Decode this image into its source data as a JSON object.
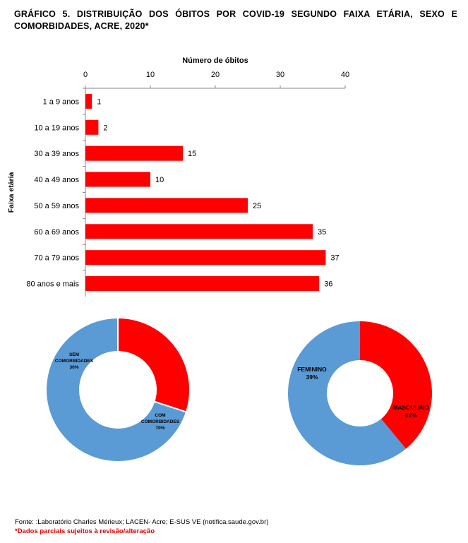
{
  "title": "GRÁFICO 5. DISTRIBUIÇÃO DOS ÓBITOS POR COVID-19 SEGUNDO FAIXA ETÁRIA, SEXO E COMORBIDADES, ACRE, 2020*",
  "chart_data": [
    {
      "type": "bar",
      "orientation": "horizontal",
      "title": "",
      "xlabel": "Número de óbitos",
      "ylabel": "Faixa etária",
      "xlim": [
        0,
        40
      ],
      "xticks": [
        0,
        10,
        20,
        30,
        40
      ],
      "x_axis_position": "top",
      "grid": false,
      "categories": [
        "1 a 9 anos",
        "10 a 19 anos",
        "30 a 39 anos",
        "40 a 49 anos",
        "50 a 59 anos",
        "60 a 69 anos",
        "70 a 79 anos",
        "80 anos e mais"
      ],
      "values": [
        1,
        2,
        15,
        10,
        25,
        35,
        37,
        36
      ],
      "value_labels": [
        "1",
        "2",
        "15",
        "10",
        "25",
        "35",
        "37",
        "36"
      ],
      "color": "#ff0000"
    },
    {
      "type": "pie",
      "style": "donut",
      "slices": [
        {
          "label": "SEM COMORBIDADES",
          "label_lines": [
            "SEM",
            "COMORBIDADES"
          ],
          "value": 30,
          "pct_label": "30%",
          "color": "#ff0000"
        },
        {
          "label": "COM COMORBIDADES",
          "label_lines": [
            "COM",
            "COMORBIDADES"
          ],
          "value": 70,
          "pct_label": "70%",
          "color": "#5b9bd5"
        }
      ]
    },
    {
      "type": "pie",
      "style": "donut",
      "slices": [
        {
          "label": "FEMININO",
          "label_lines": [
            "FEMININO"
          ],
          "value": 39,
          "pct_label": "39%",
          "color": "#ff0000"
        },
        {
          "label": "MASCULINO",
          "label_lines": [
            "MASCULINO"
          ],
          "value": 61,
          "pct_label": "61%",
          "color": "#5b9bd5"
        }
      ]
    }
  ],
  "footer": {
    "source": "Fonte: :Laboratório Charles Mérieux; LACEN- Acre; E-SUS VE (notifica.saude.gov.br)",
    "note": "*Dados parciais sujeitos à revisão/alteração"
  }
}
